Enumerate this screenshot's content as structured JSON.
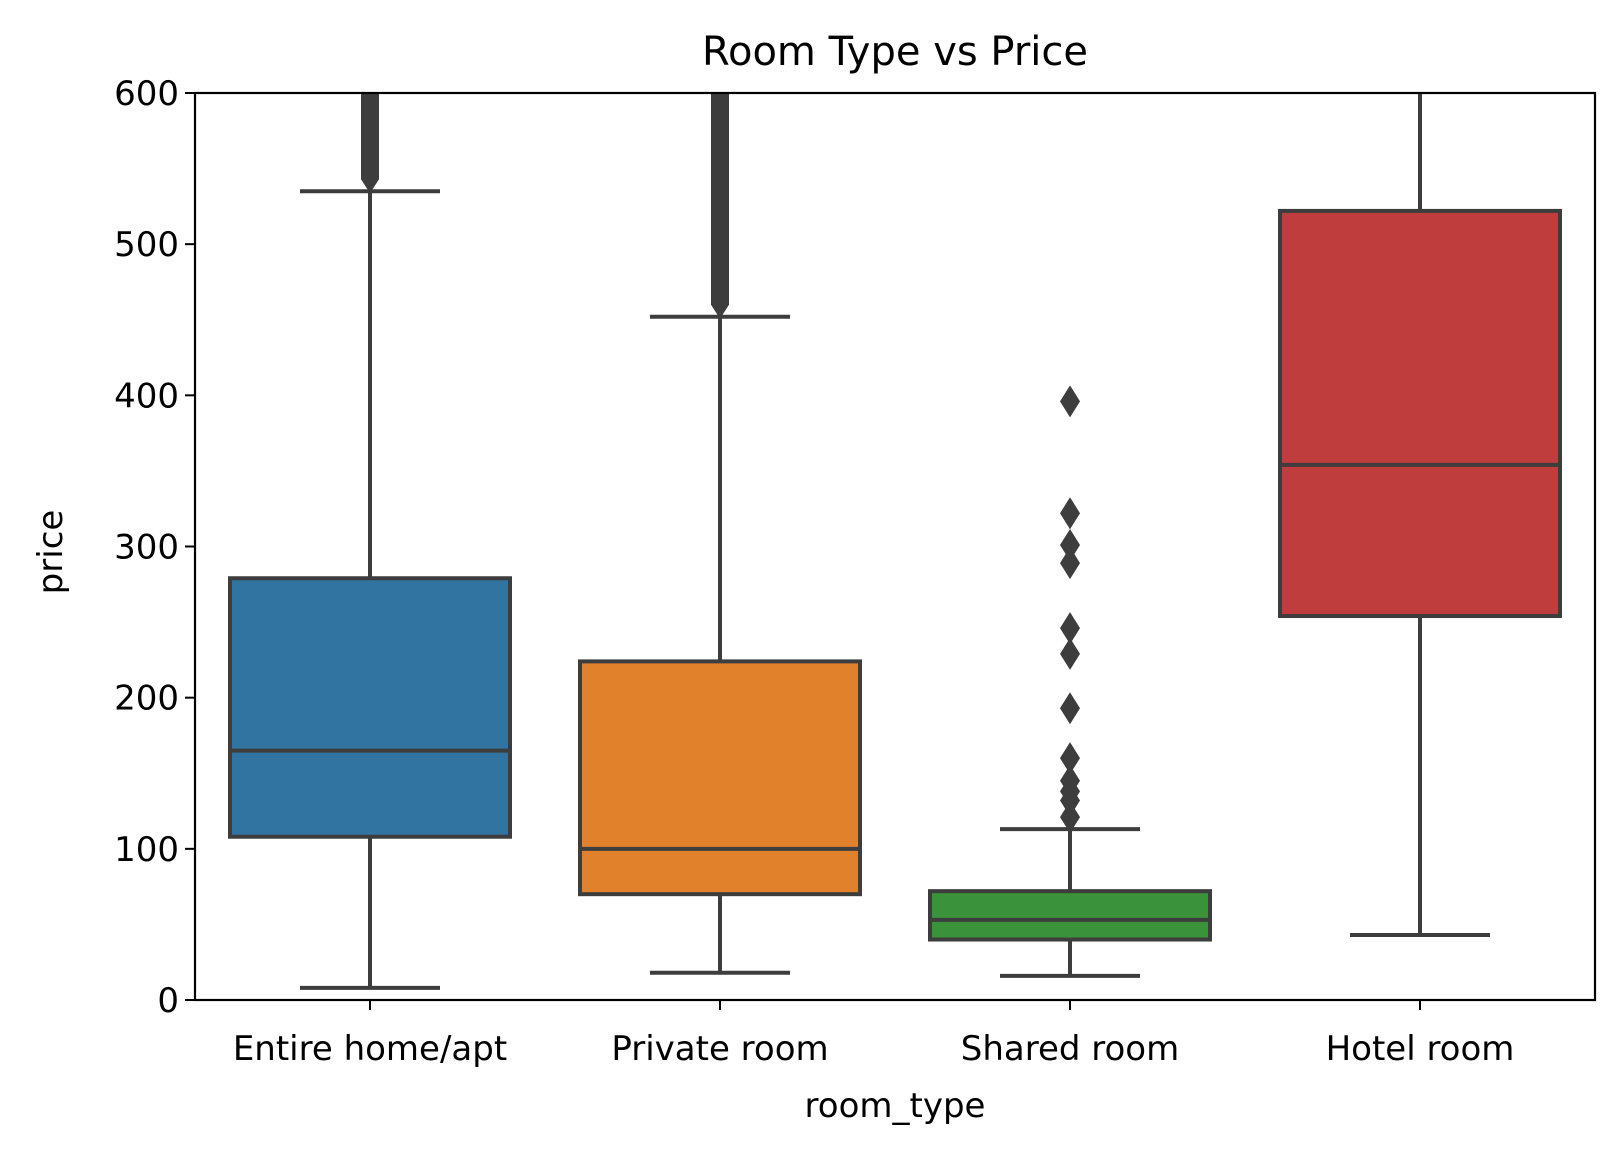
{
  "chart_data": {
    "type": "box",
    "title": "Room Type vs Price",
    "xlabel": "room_type",
    "ylabel": "price",
    "ylim": [
      0,
      600
    ],
    "yticks": [
      0,
      100,
      200,
      300,
      400,
      500,
      600
    ],
    "categories": [
      "Entire home/apt",
      "Private room",
      "Shared room",
      "Hotel room"
    ],
    "colors": [
      "#3274a1",
      "#e1812c",
      "#3a923a",
      "#c03d3e"
    ],
    "line_color": "#3d3d3d",
    "grid": false,
    "legend": "none",
    "boxes": [
      {
        "category": "Entire home/apt",
        "whisker_low": 8,
        "q1": 108,
        "median": 165,
        "q3": 279,
        "whisker_high": 535,
        "outlier_range": [
          535,
          600
        ],
        "outliers": []
      },
      {
        "category": "Private room",
        "whisker_low": 18,
        "q1": 70,
        "median": 100,
        "q3": 224,
        "whisker_high": 452,
        "outlier_range": [
          452,
          600
        ],
        "outliers": []
      },
      {
        "category": "Shared room",
        "whisker_low": 16,
        "q1": 40,
        "median": 53,
        "q3": 72,
        "whisker_high": 113,
        "outlier_range": null,
        "outliers": [
          121,
          132,
          138,
          145,
          160,
          193,
          229,
          246,
          289,
          301,
          322,
          396
        ]
      },
      {
        "category": "Hotel room",
        "whisker_low": 43,
        "q1": 254,
        "median": 354,
        "q3": 522,
        "whisker_high": 600,
        "outlier_range": null,
        "outliers": []
      }
    ]
  }
}
